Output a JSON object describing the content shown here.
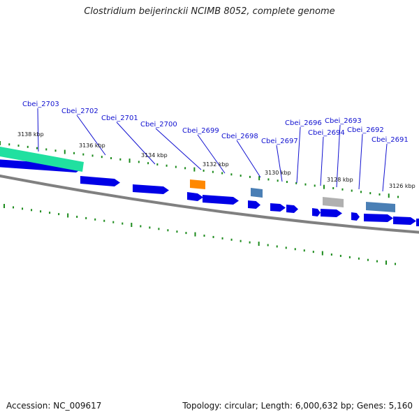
{
  "title": "Clostridium beijerinckii NCIMB 8052, complete genome",
  "footer": {
    "accession": "Accession: NC_009617",
    "summary": "Topology: circular; Length: 6,000,632 bp; Genes: 5,160"
  },
  "colors": {
    "cds": "#0000e6",
    "gene_label": "#1010d0",
    "tick": "#1a8a1a",
    "backbone": "#808080",
    "highlight_green": "#20e0a0",
    "highlight_orange": "#ff8800",
    "highlight_steelblue": "#4a7fb5",
    "highlight_gray": "#b0b0b0"
  },
  "ticks": [
    "3138 kbp",
    "3136 kbp",
    "3134 kbp",
    "3132 kbp",
    "3130 kbp",
    "3128 kbp",
    "3126 kbp"
  ],
  "genes": [
    "Cbei_2703",
    "Cbei_2702",
    "Cbei_2701",
    "Cbei_2700",
    "Cbei_2699",
    "Cbei_2698",
    "Cbei_2697",
    "Cbei_2696",
    "Cbei_2694",
    "Cbei_2693",
    "Cbei_2692",
    "Cbei_2691"
  ]
}
